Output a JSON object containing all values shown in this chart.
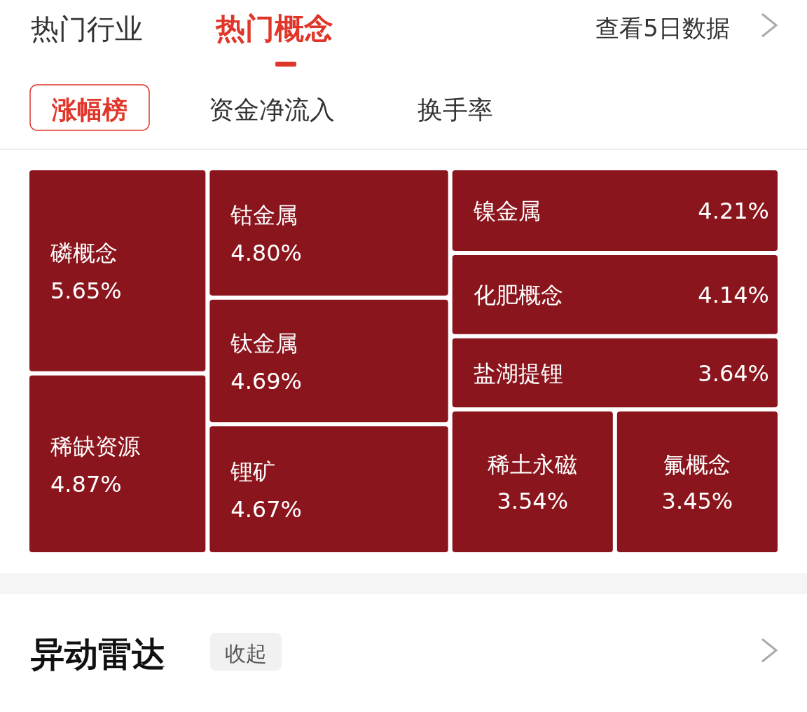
{
  "chart_data": {
    "type": "other",
    "categories": [
      "磷概念",
      "稀缺资源",
      "钴金属",
      "钛金属",
      "锂矿",
      "镍金属",
      "化肥概念",
      "盐湖提锂",
      "稀土永磁",
      "氟概念"
    ],
    "values": [
      5.65,
      4.87,
      4.8,
      4.69,
      4.67,
      4.21,
      4.14,
      3.64,
      3.54,
      3.45
    ],
    "value_labels": [
      "5.65%",
      "4.87%",
      "4.80%",
      "4.69%",
      "4.67%",
      "4.21%",
      "4.14%",
      "3.64%",
      "3.54%",
      "3.45%"
    ],
    "colors": [
      "#8b151d",
      "#8b151d",
      "#8b151d",
      "#8b151d",
      "#8b151d",
      "#8b151d",
      "#8b151d",
      "#8b151d",
      "#8b151d",
      "#8b151d"
    ],
    "annotations": [
      "热门行业",
      "热门概念",
      "查看5日数据",
      "涨幅榜",
      "资金净流入",
      "换手率",
      "异动雷达",
      "收起"
    ]
  }
}
